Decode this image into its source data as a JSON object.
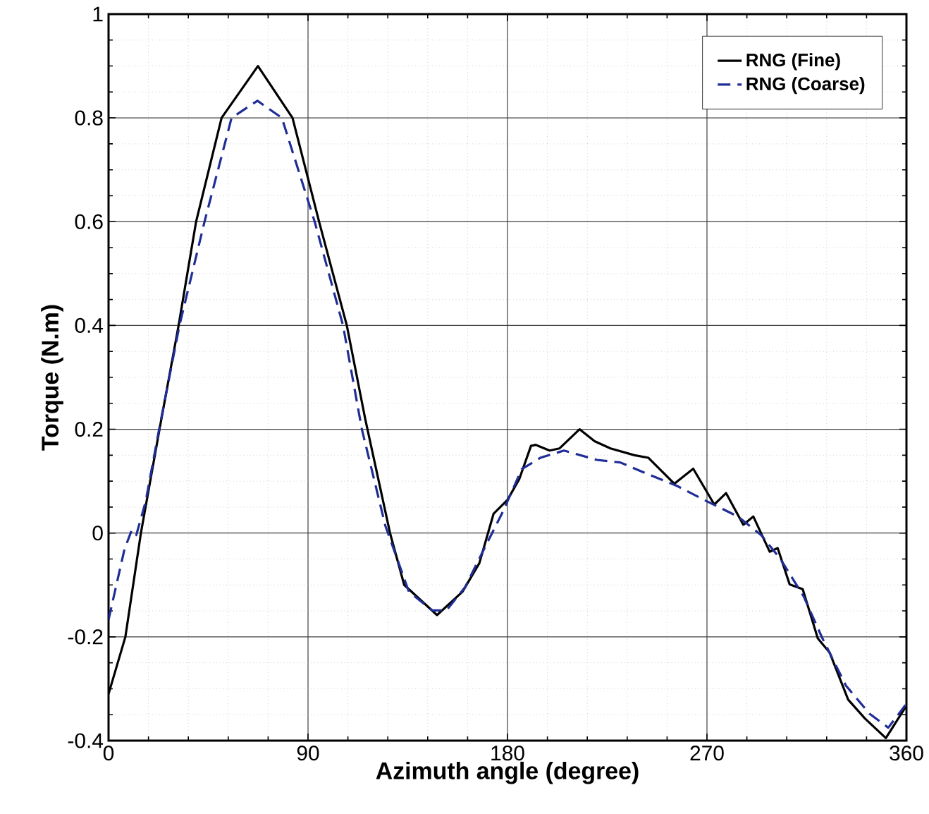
{
  "chart_data": {
    "type": "line",
    "xlabel": "Azimuth angle (degree)",
    "ylabel": "Torque (N.m)",
    "xlim": [
      0,
      360
    ],
    "ylim": [
      -0.4,
      1
    ],
    "xticks": [
      0,
      90,
      180,
      270,
      360
    ],
    "yticks": [
      -0.4,
      -0.2,
      0,
      0.2,
      0.4,
      0.6,
      0.8,
      1
    ],
    "grid": true,
    "legend": "top right",
    "marker": "none",
    "series": [
      {
        "name": "RNG (Fine)",
        "color": "#000000",
        "line_style": "solid",
        "x": [
          0,
          7.6,
          14.6,
          23,
          31.6,
          39.5,
          51,
          67.4,
          83,
          95,
          107.5,
          115.8,
          127,
          133.4,
          148.2,
          159.7,
          167.3,
          173.7,
          180,
          185.3,
          190.6,
          192.7,
          199,
          203.4,
          212.5,
          219.3,
          226.5,
          237.3,
          243.6,
          255.3,
          263.8,
          273.3,
          278.6,
          286.4,
          290.9,
          298.3,
          301.9,
          307.3,
          313.2,
          320,
          325.3,
          333.7,
          341.2,
          350.7,
          359.8
        ],
        "values": [
          -0.31,
          -0.2,
          0,
          0.2,
          0.4,
          0.6,
          0.8,
          0.9,
          0.8,
          0.6,
          0.4,
          0.22,
          0,
          -0.1,
          -0.158,
          -0.113,
          -0.058,
          0.037,
          0.064,
          0.104,
          0.168,
          0.17,
          0.159,
          0.163,
          0.2,
          0.177,
          0.163,
          0.15,
          0.145,
          0.095,
          0.124,
          0.055,
          0.077,
          0.016,
          0.032,
          -0.036,
          -0.029,
          -0.099,
          -0.108,
          -0.203,
          -0.23,
          -0.321,
          -0.357,
          -0.395,
          -0.334
        ]
      },
      {
        "name": "RNG (Coarse)",
        "color": "#1f2d96",
        "line_style": "dashed",
        "x": [
          0,
          7.2,
          10.4,
          12.5,
          16.7,
          23,
          32,
          43.3,
          55.5,
          67.2,
          78.2,
          93,
          105.8,
          114.3,
          124.9,
          135.5,
          146.1,
          152.5,
          160.9,
          169.4,
          177.9,
          186.4,
          194.8,
          205.5,
          220.3,
          230.9,
          243.6,
          256.4,
          270.1,
          283.9,
          294.5,
          303,
          313.6,
          322.1,
          332.7,
          343.3,
          351.8,
          359.8
        ],
        "values": [
          -0.167,
          -0.031,
          0.005,
          -0.004,
          0.06,
          0.204,
          0.4,
          0.6,
          0.8,
          0.833,
          0.8,
          0.6,
          0.4,
          0.2,
          0.014,
          -0.113,
          -0.149,
          -0.149,
          -0.104,
          -0.031,
          0.041,
          0.123,
          0.145,
          0.159,
          0.141,
          0.136,
          0.113,
          0.091,
          0.061,
          0.032,
          -0.004,
          -0.049,
          -0.122,
          -0.203,
          -0.294,
          -0.348,
          -0.375,
          -0.33
        ]
      }
    ]
  }
}
